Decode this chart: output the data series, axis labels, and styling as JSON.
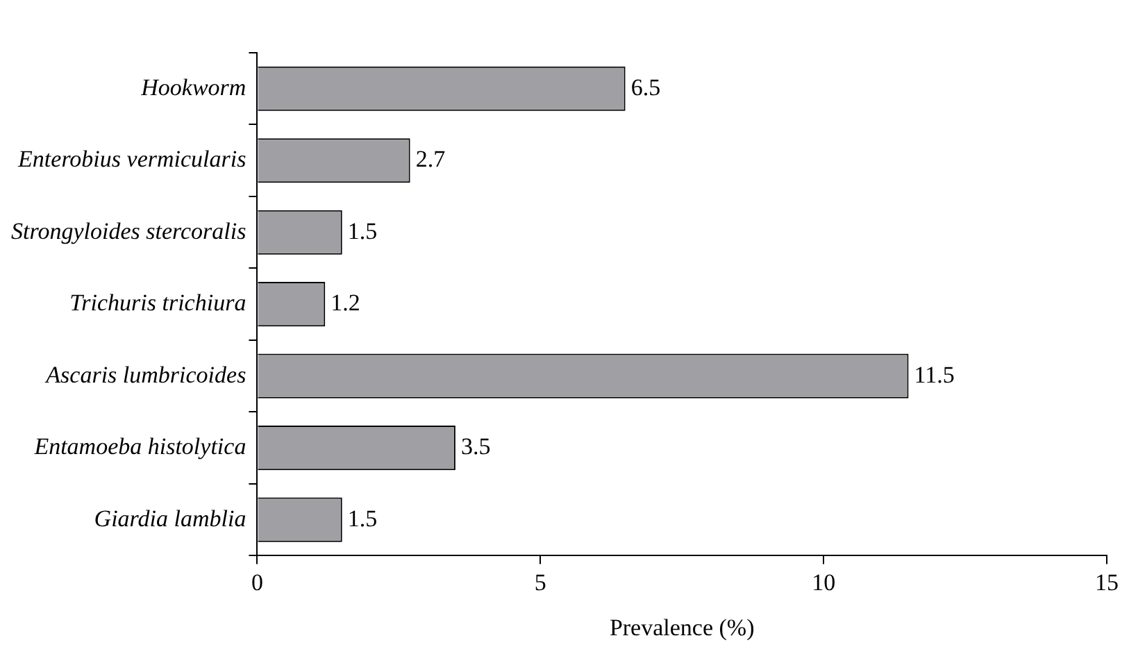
{
  "chart_data": {
    "type": "bar",
    "orientation": "horizontal",
    "xlabel": "Prevalence (%)",
    "categories": [
      "Hookworm",
      "Enterobius vermicularis",
      "Strongyloides stercoralis",
      "Trichuris trichiura",
      "Ascaris lumbricoides",
      "Entamoeba histolytica",
      "Giardia lamblia"
    ],
    "values": [
      6.5,
      2.7,
      1.5,
      1.2,
      11.5,
      3.5,
      1.5
    ],
    "color": "#a0a0a4",
    "xlim": [
      0,
      15
    ],
    "xticks": [
      0,
      5,
      10,
      15
    ],
    "data_labels": true,
    "grid": false,
    "legend": false
  }
}
